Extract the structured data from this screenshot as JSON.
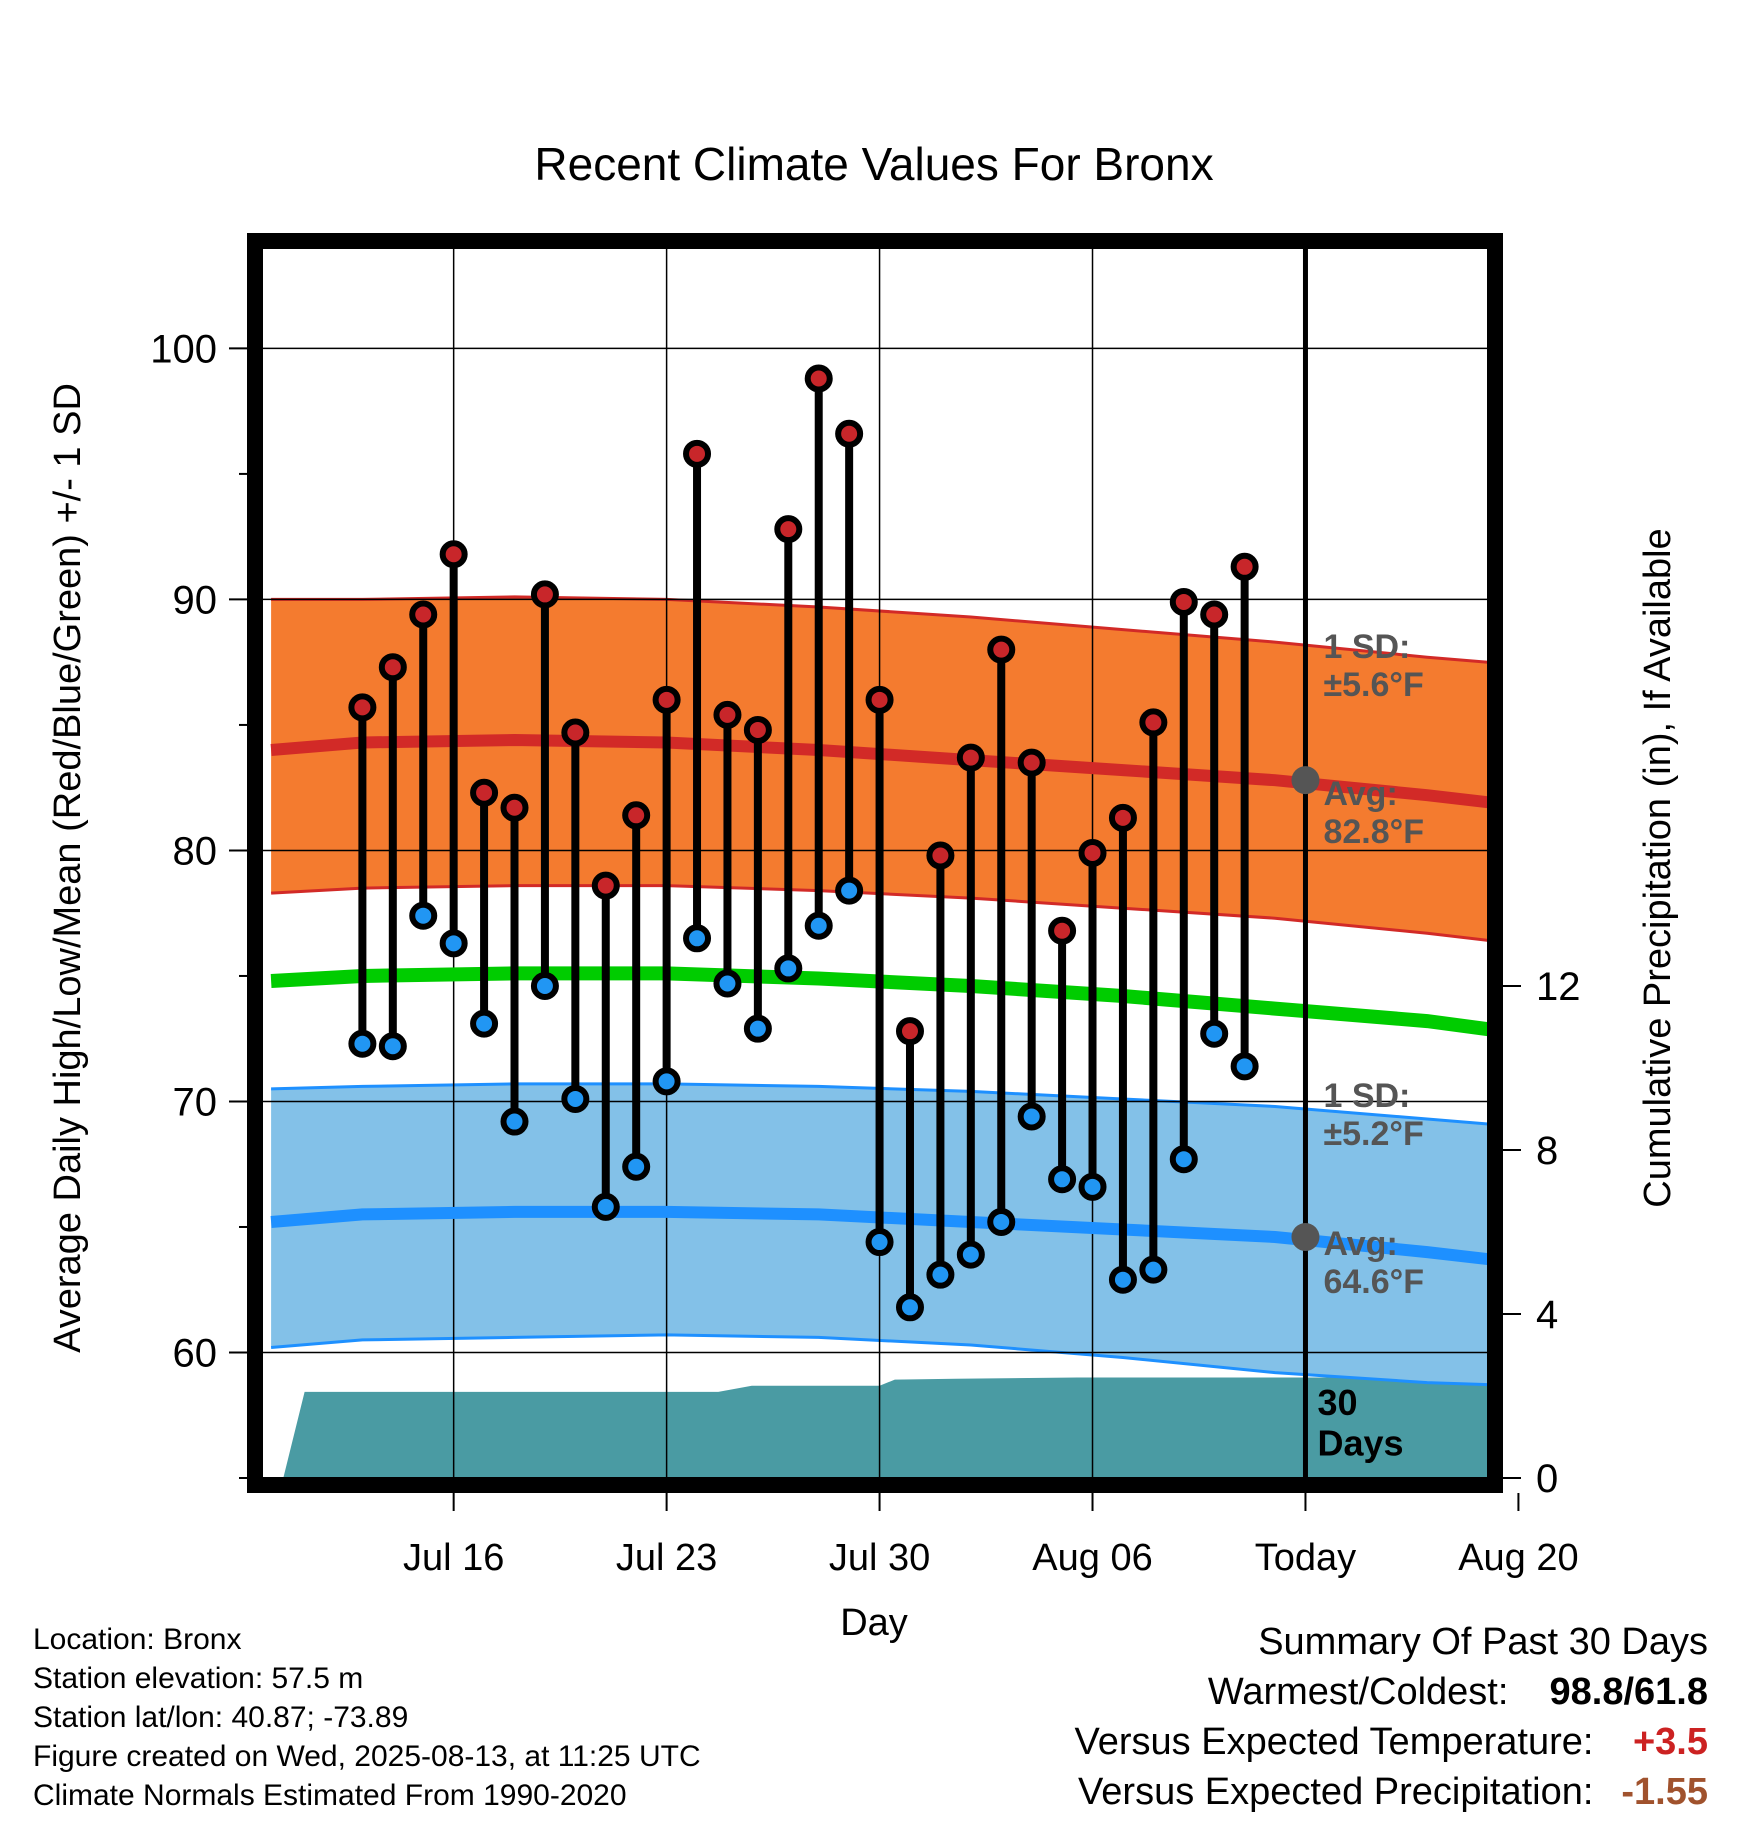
{
  "chart_data": {
    "type": "line",
    "title": "Recent Climate Values For Bronx",
    "xlabel": "Day",
    "ylabel": "Average Daily High/Low/Mean (Red/Blue/Green) +/- 1 SD",
    "y2label": "Cumulative Precipitation (in), If Available",
    "x_range_days": [
      -3.3,
      37.0
    ],
    "ylim": [
      55,
      104
    ],
    "y2lim": [
      0,
      30
    ],
    "x_ticks": [
      {
        "day": 3,
        "label": "Jul 16"
      },
      {
        "day": 10,
        "label": "Jul 23"
      },
      {
        "day": 17,
        "label": "Jul 30"
      },
      {
        "day": 24,
        "label": "Aug 06"
      },
      {
        "day": 31,
        "label": "Today"
      },
      {
        "day": 38,
        "label": "Aug 20"
      }
    ],
    "y_ticks": [
      60,
      70,
      80,
      90,
      100
    ],
    "y2_ticks": [
      0,
      4,
      8,
      12
    ],
    "grid": true,
    "days_observed": [
      "Jul 14",
      "Jul 15",
      "Jul 16",
      "Jul 17",
      "Jul 18",
      "Jul 19",
      "Jul 20",
      "Jul 21",
      "Jul 22",
      "Jul 23",
      "Jul 24",
      "Jul 25",
      "Jul 26",
      "Jul 27",
      "Jul 28",
      "Jul 29",
      "Jul 30",
      "Jul 31",
      "Aug 01",
      "Aug 02",
      "Aug 03",
      "Aug 04",
      "Aug 05",
      "Aug 06",
      "Aug 07",
      "Aug 08",
      "Aug 09",
      "Aug 10",
      "Aug 11",
      "Aug 12"
    ],
    "daily_high": [
      85.7,
      87.3,
      89.4,
      91.8,
      82.3,
      81.7,
      90.2,
      84.7,
      78.6,
      81.4,
      86.0,
      95.8,
      85.4,
      84.8,
      92.8,
      98.8,
      96.6,
      86.0,
      72.8,
      79.8,
      83.7,
      88.0,
      83.5,
      76.8,
      79.9,
      81.3,
      85.1,
      89.9,
      89.4,
      91.3
    ],
    "daily_low": [
      72.3,
      72.2,
      77.4,
      76.3,
      73.1,
      69.2,
      74.6,
      70.1,
      65.8,
      67.4,
      70.8,
      76.5,
      74.7,
      72.9,
      75.3,
      77.0,
      78.4,
      64.4,
      61.8,
      63.1,
      63.9,
      65.2,
      69.4,
      66.9,
      66.6,
      62.9,
      63.3,
      67.7,
      72.7,
      71.4
    ],
    "normal_days": [
      -3,
      0,
      5,
      10,
      15,
      20,
      25,
      30,
      35,
      40
    ],
    "normal_high": [
      84.0,
      84.3,
      84.4,
      84.3,
      84.0,
      83.6,
      83.2,
      82.8,
      82.2,
      81.5
    ],
    "normal_high_upper": [
      90.0,
      90.0,
      90.1,
      90.0,
      89.7,
      89.3,
      88.8,
      88.3,
      87.7,
      87.2
    ],
    "normal_high_lower": [
      78.3,
      78.5,
      78.6,
      78.6,
      78.4,
      78.1,
      77.7,
      77.3,
      76.7,
      76.0
    ],
    "normal_mean": [
      74.8,
      75.0,
      75.1,
      75.1,
      74.9,
      74.6,
      74.2,
      73.7,
      73.2,
      72.4
    ],
    "normal_low": [
      65.2,
      65.5,
      65.6,
      65.6,
      65.5,
      65.2,
      64.9,
      64.6,
      64.0,
      63.3
    ],
    "normal_low_upper": [
      70.5,
      70.6,
      70.7,
      70.7,
      70.6,
      70.4,
      70.1,
      69.8,
      69.3,
      68.8
    ],
    "normal_low_lower": [
      60.2,
      60.5,
      60.6,
      60.7,
      60.6,
      60.3,
      59.8,
      59.2,
      58.8,
      58.6
    ],
    "precip_days": [
      -2.6,
      -1.9,
      -1.0,
      0,
      5,
      10,
      11.7,
      12.8,
      16.5,
      17.0,
      17.5,
      19.5,
      23.5,
      31,
      37.5
    ],
    "cumulative_precip": [
      0.0,
      2.1,
      2.1,
      2.1,
      2.1,
      2.1,
      2.1,
      2.25,
      2.25,
      2.25,
      2.4,
      2.42,
      2.45,
      2.45,
      2.45
    ],
    "annotations": {
      "high_sd": "1 SD:\n±5.6°F",
      "high_avg_label": "Avg:",
      "high_avg_value": "82.8°F",
      "high_avg": 82.8,
      "low_sd": "1 SD:\n±5.2°F",
      "low_avg_label": "Avg:",
      "low_avg_value": "64.6°F",
      "low_avg": 64.6,
      "period": "30\nDays"
    },
    "colors": {
      "high_band": "#f47b2f",
      "high_line": "#d22a27",
      "high_band_edge": "#d22a27",
      "mean_line": "#00cc00",
      "low_band": "#83c1e8",
      "low_line": "#1e90ff",
      "low_band_edge": "#1e90ff",
      "precip_fill": "#4a9ba3",
      "high_dot": "#c8262a",
      "low_dot": "#2196f3",
      "avg_marker": "#555555",
      "annotation_text": "#555555"
    }
  },
  "footer": {
    "location": "Location: Bronx",
    "elevation": "Station elevation: 57.5 m",
    "latlon": "Station lat/lon: 40.87; -73.89",
    "created": "Figure created on Wed, 2025-08-13, at 11:25 UTC",
    "normals": "Climate Normals Estimated From 1990-2020"
  },
  "summary": {
    "title": "Summary Of Past 30 Days",
    "warm_cold_label": "Warmest/Coldest:",
    "warm_cold_value": "98.8/61.8",
    "temp_label": "Versus Expected Temperature:",
    "temp_value": "+3.5",
    "precip_label": "Versus Expected Precipitation:",
    "precip_value": "-1.55"
  }
}
